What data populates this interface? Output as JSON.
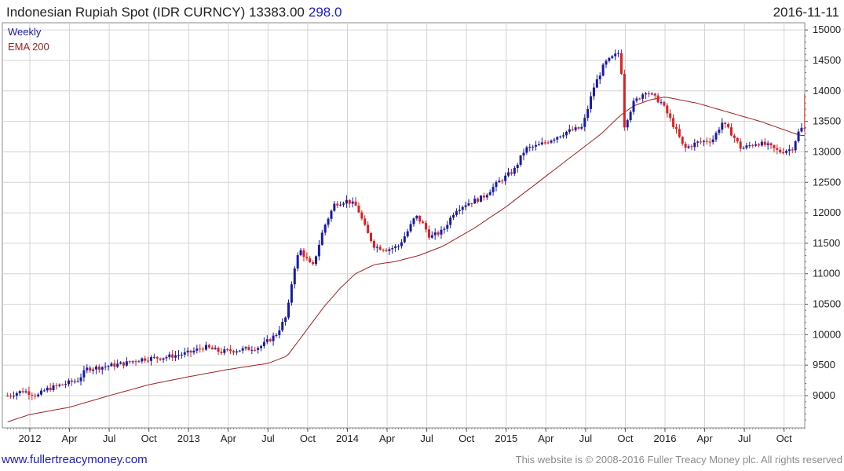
{
  "header": {
    "title": "Indonesian Rupiah Spot (IDR CURNCY) 13383.00",
    "change": "298.0",
    "date": "2016-11-11"
  },
  "legend": {
    "series1": "Weekly",
    "series2": "EMA 200"
  },
  "footer": {
    "website": "www.fullertreacymoney.com",
    "copyright": "This website is © 2008-2016 Fuller Treacy Money plc. All rights reserved"
  },
  "colors": {
    "up": "#1a1aa8",
    "down": "#dd1f1f",
    "ema": "#a02020",
    "grid": "#d4d4d4",
    "change": "#1a1ad0",
    "link": "#1a1acc",
    "footer": "#8a8a8a"
  },
  "chart_data": {
    "type": "candlestick",
    "title": "Indonesian Rupiah Spot (IDR CURNCY) 13383.00 298.0",
    "period": "Weekly",
    "last_value": 13383.0,
    "last_change": 298.0,
    "ylim": [
      8550,
      15100
    ],
    "y_ticks": [
      9000,
      9500,
      10000,
      10500,
      11000,
      11500,
      12000,
      12500,
      13000,
      13500,
      14000,
      14500,
      15000
    ],
    "x_ticks": [
      {
        "label": "2012",
        "t": 2012.0
      },
      {
        "label": "Apr",
        "t": 2012.25
      },
      {
        "label": "Jul",
        "t": 2012.5
      },
      {
        "label": "Oct",
        "t": 2012.75
      },
      {
        "label": "2013",
        "t": 2013.0
      },
      {
        "label": "Apr",
        "t": 2013.25
      },
      {
        "label": "Jul",
        "t": 2013.5
      },
      {
        "label": "Oct",
        "t": 2013.75
      },
      {
        "label": "2014",
        "t": 2014.0
      },
      {
        "label": "Apr",
        "t": 2014.25
      },
      {
        "label": "Jul",
        "t": 2014.5
      },
      {
        "label": "Oct",
        "t": 2014.75
      },
      {
        "label": "2015",
        "t": 2015.0
      },
      {
        "label": "Apr",
        "t": 2015.25
      },
      {
        "label": "Jul",
        "t": 2015.5
      },
      {
        "label": "Oct",
        "t": 2015.75
      },
      {
        "label": "2016",
        "t": 2016.0
      },
      {
        "label": "Apr",
        "t": 2016.25
      },
      {
        "label": "Jul",
        "t": 2016.5
      },
      {
        "label": "Oct",
        "t": 2016.75
      }
    ],
    "xlim": [
      2011.86,
      2016.89
    ],
    "close_anchors": [
      [
        2011.86,
        9000
      ],
      [
        2011.96,
        9080
      ],
      [
        2012.05,
        9000
      ],
      [
        2012.1,
        9100
      ],
      [
        2012.2,
        9180
      ],
      [
        2012.3,
        9250
      ],
      [
        2012.36,
        9440
      ],
      [
        2012.45,
        9470
      ],
      [
        2012.6,
        9530
      ],
      [
        2012.7,
        9600
      ],
      [
        2012.85,
        9630
      ],
      [
        2013.0,
        9700
      ],
      [
        2013.1,
        9800
      ],
      [
        2013.2,
        9720
      ],
      [
        2013.35,
        9760
      ],
      [
        2013.45,
        9800
      ],
      [
        2013.55,
        10000
      ],
      [
        2013.62,
        10320
      ],
      [
        2013.66,
        11050
      ],
      [
        2013.7,
        11400
      ],
      [
        2013.78,
        11100
      ],
      [
        2013.85,
        11750
      ],
      [
        2013.92,
        12150
      ],
      [
        2014.0,
        12200
      ],
      [
        2014.06,
        12100
      ],
      [
        2014.12,
        11700
      ],
      [
        2014.17,
        11450
      ],
      [
        2014.25,
        11400
      ],
      [
        2014.32,
        11450
      ],
      [
        2014.38,
        11700
      ],
      [
        2014.43,
        11950
      ],
      [
        2014.48,
        11800
      ],
      [
        2014.52,
        11600
      ],
      [
        2014.6,
        11700
      ],
      [
        2014.68,
        12050
      ],
      [
        2014.75,
        12150
      ],
      [
        2014.85,
        12250
      ],
      [
        2014.95,
        12500
      ],
      [
        2015.05,
        12700
      ],
      [
        2015.12,
        13050
      ],
      [
        2015.2,
        13100
      ],
      [
        2015.28,
        13200
      ],
      [
        2015.38,
        13330
      ],
      [
        2015.48,
        13400
      ],
      [
        2015.55,
        14050
      ],
      [
        2015.62,
        14450
      ],
      [
        2015.72,
        14650
      ],
      [
        2015.74,
        13400
      ],
      [
        2015.8,
        13800
      ],
      [
        2015.88,
        14000
      ],
      [
        2015.98,
        13800
      ],
      [
        2016.02,
        13600
      ],
      [
        2016.08,
        13300
      ],
      [
        2016.12,
        13050
      ],
      [
        2016.2,
        13150
      ],
      [
        2016.3,
        13200
      ],
      [
        2016.36,
        13480
      ],
      [
        2016.42,
        13300
      ],
      [
        2016.48,
        13050
      ],
      [
        2016.58,
        13150
      ],
      [
        2016.65,
        13100
      ],
      [
        2016.72,
        13000
      ],
      [
        2016.8,
        13050
      ],
      [
        2016.85,
        13383
      ]
    ],
    "ema_anchors": [
      [
        2011.86,
        8720
      ],
      [
        2012.0,
        8840
      ],
      [
        2012.25,
        8960
      ],
      [
        2012.5,
        9150
      ],
      [
        2012.75,
        9330
      ],
      [
        2013.0,
        9460
      ],
      [
        2013.25,
        9580
      ],
      [
        2013.5,
        9680
      ],
      [
        2013.62,
        9800
      ],
      [
        2013.75,
        10250
      ],
      [
        2013.85,
        10600
      ],
      [
        2013.95,
        10900
      ],
      [
        2014.05,
        11150
      ],
      [
        2014.17,
        11300
      ],
      [
        2014.3,
        11350
      ],
      [
        2014.45,
        11450
      ],
      [
        2014.6,
        11600
      ],
      [
        2014.8,
        11900
      ],
      [
        2015.0,
        12250
      ],
      [
        2015.2,
        12650
      ],
      [
        2015.35,
        12950
      ],
      [
        2015.5,
        13250
      ],
      [
        2015.6,
        13450
      ],
      [
        2015.72,
        13750
      ],
      [
        2015.8,
        13900
      ],
      [
        2015.9,
        14000
      ],
      [
        2016.0,
        14050
      ],
      [
        2016.2,
        13950
      ],
      [
        2016.4,
        13800
      ],
      [
        2016.6,
        13650
      ],
      [
        2016.85,
        13420
      ]
    ],
    "ema_offset": -150
  }
}
